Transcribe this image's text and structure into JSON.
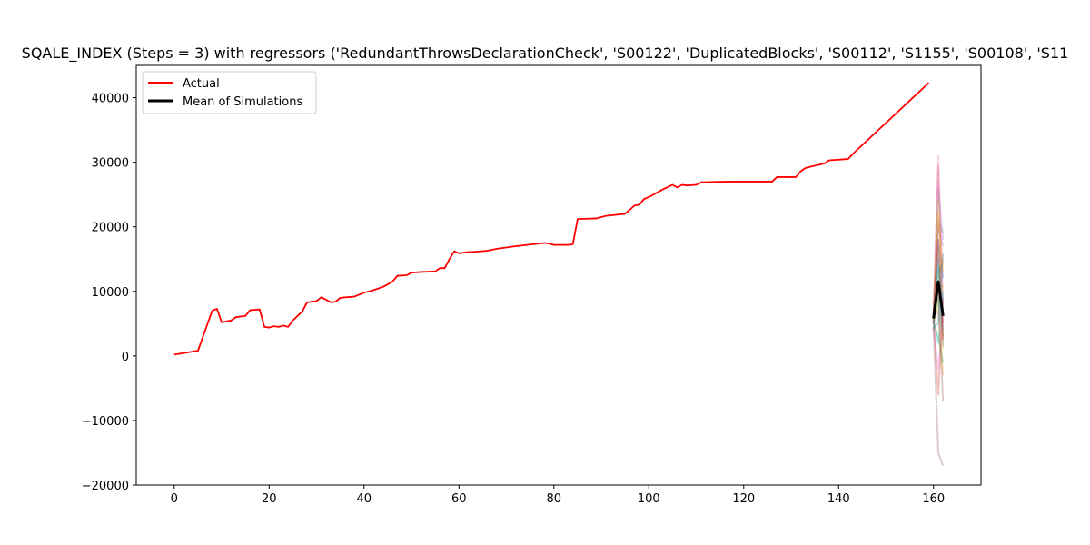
{
  "chart_data": {
    "type": "line",
    "title": "SQALE_INDEX (Steps = 3) with regressors ('RedundantThrowsDeclarationCheck', 'S00122', 'DuplicatedBlocks', 'S00112', 'S1155', 'S00108', 'S11",
    "xlabel": "",
    "ylabel": "",
    "xlim": [
      -8,
      170
    ],
    "ylim": [
      -20000,
      45000
    ],
    "xticks": [
      0,
      20,
      40,
      60,
      80,
      100,
      120,
      140,
      160
    ],
    "xtick_labels": [
      "0",
      "20",
      "40",
      "60",
      "80",
      "100",
      "120",
      "140",
      "160"
    ],
    "yticks": [
      -20000,
      -10000,
      0,
      10000,
      20000,
      30000,
      40000
    ],
    "ytick_labels": [
      "−20000",
      "−10000",
      "0",
      "10000",
      "20000",
      "30000",
      "40000"
    ],
    "grid": false,
    "legend": {
      "position": "top-left",
      "entries": [
        {
          "label": "Actual",
          "color": "#ff0000"
        },
        {
          "label": "Mean of Simulations",
          "color": "#000000"
        }
      ]
    },
    "series": [
      {
        "name": "Actual",
        "color": "#ff0000",
        "x": [
          0,
          5,
          8,
          9,
          10,
          12,
          13,
          15,
          16,
          18,
          19,
          20,
          21,
          22,
          23,
          24,
          25,
          27,
          28,
          30,
          31,
          33,
          34,
          35,
          38,
          40,
          42,
          44,
          46,
          47,
          49,
          50,
          52,
          55,
          56,
          57,
          58,
          59,
          60,
          61,
          62,
          63,
          66,
          68,
          72,
          78,
          79,
          80,
          83,
          84,
          85,
          89,
          90,
          91,
          95,
          97,
          98,
          99,
          100,
          101,
          103,
          105,
          106,
          107,
          108,
          110,
          111,
          117,
          126,
          127,
          131,
          132,
          133,
          134,
          137,
          138,
          142,
          143,
          159
        ],
        "y": [
          200,
          800,
          7000,
          7300,
          5200,
          5500,
          6000,
          6200,
          7100,
          7200,
          4500,
          4400,
          4600,
          4500,
          4700,
          4500,
          5500,
          6900,
          8300,
          8500,
          9100,
          8300,
          8400,
          9000,
          9200,
          9800,
          10200,
          10700,
          11500,
          12400,
          12500,
          12900,
          13000,
          13100,
          13600,
          13600,
          15000,
          16200,
          15900,
          16000,
          16100,
          16100,
          16300,
          16600,
          17000,
          17500,
          17400,
          17200,
          17200,
          17300,
          21200,
          21300,
          21500,
          21700,
          22000,
          23300,
          23400,
          24300,
          24600,
          25000,
          25800,
          26500,
          26100,
          26500,
          26400,
          26500,
          26900,
          27000,
          27000,
          27700,
          27700,
          28600,
          29100,
          29300,
          29800,
          30300,
          30500,
          31300,
          42300
        ]
      },
      {
        "name": "Mean of Simulations",
        "color": "#000000",
        "x": [
          160,
          161,
          162
        ],
        "y": [
          5800,
          11500,
          6200
        ]
      }
    ],
    "simulations": [
      {
        "color": "#1f77b4",
        "x": [
          160,
          161,
          162
        ],
        "y": [
          4000,
          18000,
          12000
        ]
      },
      {
        "color": "#ff7f0e",
        "x": [
          160,
          161,
          162
        ],
        "y": [
          7000,
          12000,
          15000
        ]
      },
      {
        "color": "#2ca02c",
        "x": [
          160,
          161,
          162
        ],
        "y": [
          5000,
          9000,
          3000
        ]
      },
      {
        "color": "#d62728",
        "x": [
          160,
          161,
          162
        ],
        "y": [
          6000,
          29500,
          5000
        ]
      },
      {
        "color": "#9467bd",
        "x": [
          160,
          161,
          162
        ],
        "y": [
          5500,
          26000,
          18000
        ]
      },
      {
        "color": "#8c564b",
        "x": [
          160,
          161,
          162
        ],
        "y": [
          4500,
          -15000,
          -17000
        ]
      },
      {
        "color": "#e377c2",
        "x": [
          160,
          161,
          162
        ],
        "y": [
          6000,
          31000,
          8000
        ]
      },
      {
        "color": "#7f7f7f",
        "x": [
          160,
          161,
          162
        ],
        "y": [
          5000,
          21000,
          19000
        ]
      },
      {
        "color": "#bcbd22",
        "x": [
          160,
          161,
          162
        ],
        "y": [
          6500,
          24000,
          1000
        ]
      },
      {
        "color": "#17becf",
        "x": [
          160,
          161,
          162
        ],
        "y": [
          5500,
          2000,
          10000
        ]
      },
      {
        "color": "#1f77b4",
        "x": [
          160,
          161,
          162
        ],
        "y": [
          7000,
          15000,
          4000
        ]
      },
      {
        "color": "#ff7f0e",
        "x": [
          160,
          161,
          162
        ],
        "y": [
          6000,
          7000,
          -3000
        ]
      },
      {
        "color": "#2ca02c",
        "x": [
          160,
          161,
          162
        ],
        "y": [
          5000,
          13000,
          14500
        ]
      },
      {
        "color": "#d62728",
        "x": [
          160,
          161,
          162
        ],
        "y": [
          6000,
          -6000,
          9000
        ]
      },
      {
        "color": "#9467bd",
        "x": [
          160,
          161,
          162
        ],
        "y": [
          5000,
          20000,
          17000
        ]
      },
      {
        "color": "#8c564b",
        "x": [
          160,
          161,
          162
        ],
        "y": [
          5500,
          10000,
          -7000
        ]
      },
      {
        "color": "#e377c2",
        "x": [
          160,
          161,
          162
        ],
        "y": [
          4000,
          -2000,
          6000
        ]
      },
      {
        "color": "#7f7f7f",
        "x": [
          160,
          161,
          162
        ],
        "y": [
          6500,
          17000,
          1500
        ]
      },
      {
        "color": "#bcbd22",
        "x": [
          160,
          161,
          162
        ],
        "y": [
          5500,
          8000,
          11000
        ]
      },
      {
        "color": "#17becf",
        "x": [
          160,
          161,
          162
        ],
        "y": [
          6000,
          14000,
          7000
        ]
      },
      {
        "color": "#1f77b4",
        "x": [
          160,
          161,
          162
        ],
        "y": [
          4500,
          5000,
          16000
        ]
      },
      {
        "color": "#ff7f0e",
        "x": [
          160,
          161,
          162
        ],
        "y": [
          6000,
          22000,
          13000
        ]
      },
      {
        "color": "#2ca02c",
        "x": [
          160,
          161,
          162
        ],
        "y": [
          5000,
          3000,
          -1000
        ]
      },
      {
        "color": "#d62728",
        "x": [
          160,
          161,
          162
        ],
        "y": [
          6500,
          18000,
          2500
        ]
      }
    ]
  }
}
